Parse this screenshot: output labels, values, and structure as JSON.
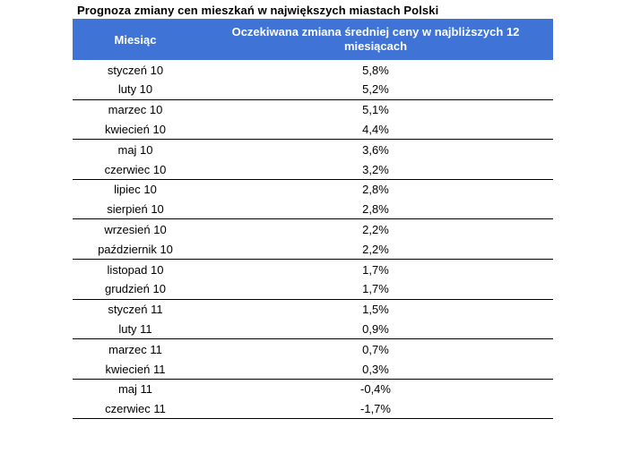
{
  "title": "Prognoza zmiany cen mieszkań w największych miastach Polski",
  "chart_data": {
    "type": "table",
    "columns": [
      "Miesiąc",
      "Oczekiwana zmiana średniej ceny w najbliższych 12 miesiącach"
    ],
    "rows": [
      [
        "styczeń 10",
        "5,8%"
      ],
      [
        "luty 10",
        "5,2%"
      ],
      [
        "marzec 10",
        "5,1%"
      ],
      [
        "kwiecień 10",
        "4,4%"
      ],
      [
        "maj 10",
        "3,6%"
      ],
      [
        "czerwiec 10",
        "3,2%"
      ],
      [
        "lipiec 10",
        "2,8%"
      ],
      [
        "sierpień 10",
        "2,8%"
      ],
      [
        "wrzesień 10",
        "2,2%"
      ],
      [
        "październik 10",
        "2,2%"
      ],
      [
        "listopad 10",
        "1,7%"
      ],
      [
        "grudzień 10",
        "1,7%"
      ],
      [
        "styczeń 11",
        "1,5%"
      ],
      [
        "luty 11",
        "0,9%"
      ],
      [
        "marzec 11",
        "0,7%"
      ],
      [
        "kwiecień 11",
        "0,3%"
      ],
      [
        "maj 11",
        "-0,4%"
      ],
      [
        "czerwiec 11",
        "-1,7%"
      ]
    ]
  },
  "colors": {
    "header_bg": "#3f73d6",
    "header_text": "#ffffff",
    "row_divider": "#000000"
  }
}
